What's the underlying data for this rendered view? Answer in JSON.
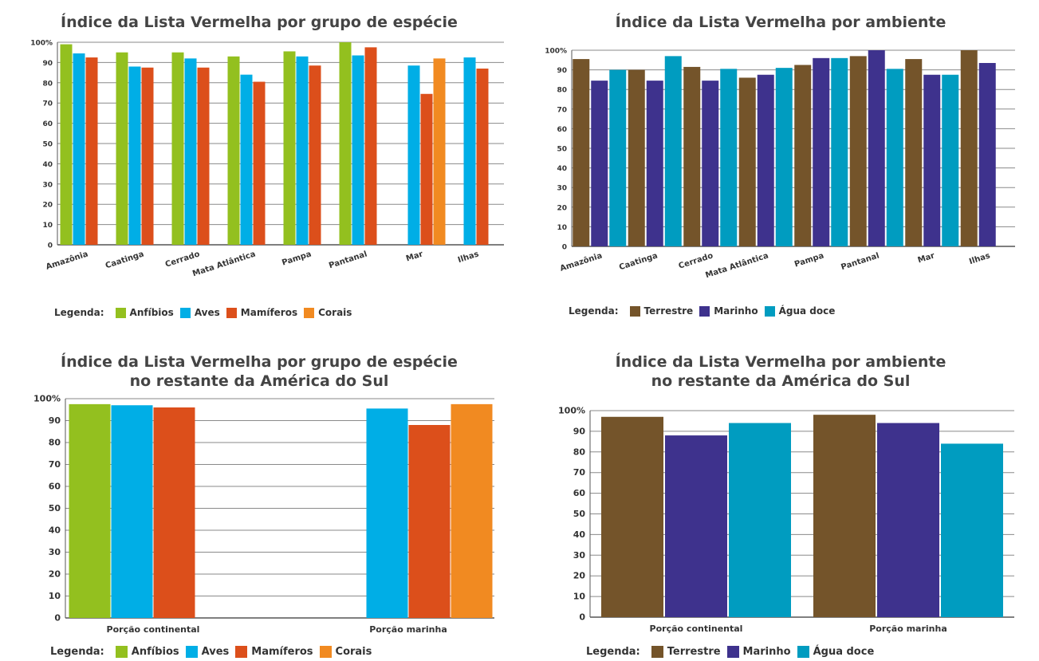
{
  "chart_data": [
    {
      "type": "bar",
      "title": "Índice da Lista Vermelha por grupo de espécie",
      "subtitle": "",
      "xlabel": "",
      "ylabel": "",
      "categories": [
        "Amazônia",
        "Caatinga",
        "Cerrado",
        "Mata Atlântica",
        "Pampa",
        "Pantanal",
        "Mar",
        "Ilhas"
      ],
      "series": [
        {
          "name": "Anfíbios",
          "color": "#93c01f",
          "values": [
            99,
            95,
            95,
            93,
            95.5,
            100,
            null,
            null
          ]
        },
        {
          "name": "Aves",
          "color": "#00aee6",
          "values": [
            94.5,
            88,
            92,
            84,
            93,
            93.5,
            88.5,
            92.5
          ]
        },
        {
          "name": "Mamíferos",
          "color": "#dc4f1b",
          "values": [
            92.5,
            87.5,
            87.5,
            80.5,
            88.5,
            97.5,
            74.5,
            87
          ]
        },
        {
          "name": "Corais",
          "color": "#f18a21",
          "values": [
            null,
            null,
            null,
            null,
            null,
            null,
            92,
            null
          ]
        }
      ],
      "ylim": [
        0,
        100
      ],
      "yticks": [
        "0",
        "10",
        "20",
        "30",
        "40",
        "50",
        "60",
        "70",
        "80",
        "90",
        "100%"
      ],
      "grid": true,
      "legend_label": "Legenda:",
      "legend_position": "bottom-left"
    },
    {
      "type": "bar",
      "title": "Índice da Lista Vermelha por ambiente",
      "subtitle": "",
      "xlabel": "",
      "ylabel": "",
      "categories": [
        "Amazônia",
        "Caatinga",
        "Cerrado",
        "Mata Atlântica",
        "Pampa",
        "Pantanal",
        "Mar",
        "Ilhas"
      ],
      "series": [
        {
          "name": "Terrestre",
          "color": "#74542a",
          "values": [
            95.5,
            90,
            91.5,
            86,
            92.5,
            97,
            95.5,
            100
          ]
        },
        {
          "name": "Marinho",
          "color": "#3e328d",
          "values": [
            84.5,
            84.5,
            84.5,
            87.5,
            96,
            100,
            87.5,
            93.5
          ]
        },
        {
          "name": "Água doce",
          "color": "#009cc0",
          "values": [
            90,
            97,
            90.5,
            91,
            96,
            90.5,
            87.5,
            null
          ]
        }
      ],
      "ylim": [
        0,
        100
      ],
      "yticks": [
        "0",
        "10",
        "20",
        "30",
        "40",
        "50",
        "60",
        "70",
        "80",
        "90",
        "100%"
      ],
      "grid": true,
      "legend_label": "Legenda:",
      "legend_position": "bottom-left"
    },
    {
      "type": "bar",
      "title": "Índice da Lista Vermelha por grupo de espécie",
      "subtitle": "no restante da América do Sul",
      "xlabel": "",
      "ylabel": "",
      "categories": [
        "Porção continental",
        "Porção marinha"
      ],
      "series": [
        {
          "name": "Anfíbios",
          "color": "#93c01f",
          "values": [
            97.5,
            null
          ]
        },
        {
          "name": "Aves",
          "color": "#00aee6",
          "values": [
            97,
            95.5
          ]
        },
        {
          "name": "Mamíferos",
          "color": "#dc4f1b",
          "values": [
            96,
            88
          ]
        },
        {
          "name": "Corais",
          "color": "#f18a21",
          "values": [
            null,
            97.5
          ]
        }
      ],
      "ylim": [
        0,
        100
      ],
      "yticks": [
        "0",
        "10",
        "20",
        "30",
        "40",
        "50",
        "60",
        "70",
        "80",
        "90",
        "100%"
      ],
      "grid": true,
      "legend_label": "Legenda:",
      "legend_position": "bottom-left"
    },
    {
      "type": "bar",
      "title": "Índice da Lista Vermelha por ambiente",
      "subtitle": "no restante da América do Sul",
      "xlabel": "",
      "ylabel": "",
      "categories": [
        "Porção continental",
        "Porção marinha"
      ],
      "series": [
        {
          "name": "Terrestre",
          "color": "#74542a",
          "values": [
            97,
            98
          ]
        },
        {
          "name": "Marinho",
          "color": "#3e328d",
          "values": [
            88,
            94
          ]
        },
        {
          "name": "Água doce",
          "color": "#009cc0",
          "values": [
            94,
            84
          ]
        }
      ],
      "ylim": [
        0,
        100
      ],
      "yticks": [
        "0",
        "10",
        "20",
        "30",
        "40",
        "50",
        "60",
        "70",
        "80",
        "90",
        "100%"
      ],
      "grid": true,
      "legend_label": "Legenda:",
      "legend_position": "bottom-left"
    }
  ]
}
